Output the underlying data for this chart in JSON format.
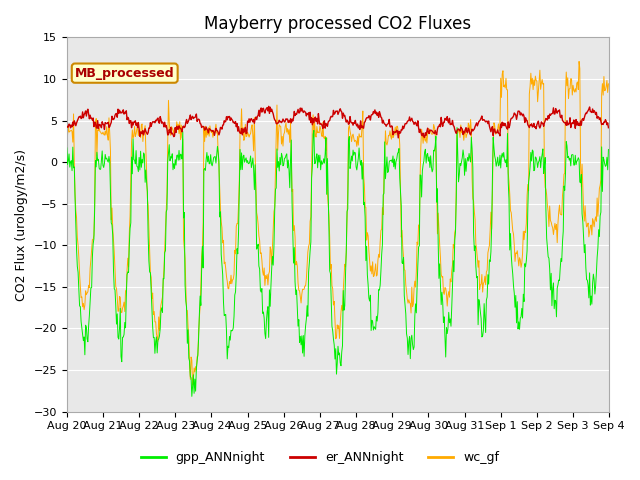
{
  "title": "Mayberry processed CO2 Fluxes",
  "ylabel": "CO2 Flux (urology/m2/s)",
  "ylim": [
    -30,
    15
  ],
  "yticks": [
    -30,
    -25,
    -20,
    -15,
    -10,
    -5,
    0,
    5,
    10,
    15
  ],
  "bg_color": "#e8e8e8",
  "gpp_color": "#00ee00",
  "er_color": "#cc0000",
  "wc_color": "#ffaa00",
  "annotation_text": "MB_processed",
  "annotation_color": "#aa0000",
  "annotation_bg": "#ffffcc",
  "annotation_border": "#cc8800",
  "legend_labels": [
    "gpp_ANNnight",
    "er_ANNnight",
    "wc_gf"
  ],
  "n_days": 15,
  "points_per_day": 48,
  "date_labels": [
    "Aug 20",
    "Aug 21",
    "Aug 22",
    "Aug 23",
    "Aug 24",
    "Aug 25",
    "Aug 26",
    "Aug 27",
    "Aug 28",
    "Aug 29",
    "Aug 30",
    "Aug 31",
    "Sep 1",
    "Sep 2",
    "Sep 3",
    "Sep 4"
  ]
}
